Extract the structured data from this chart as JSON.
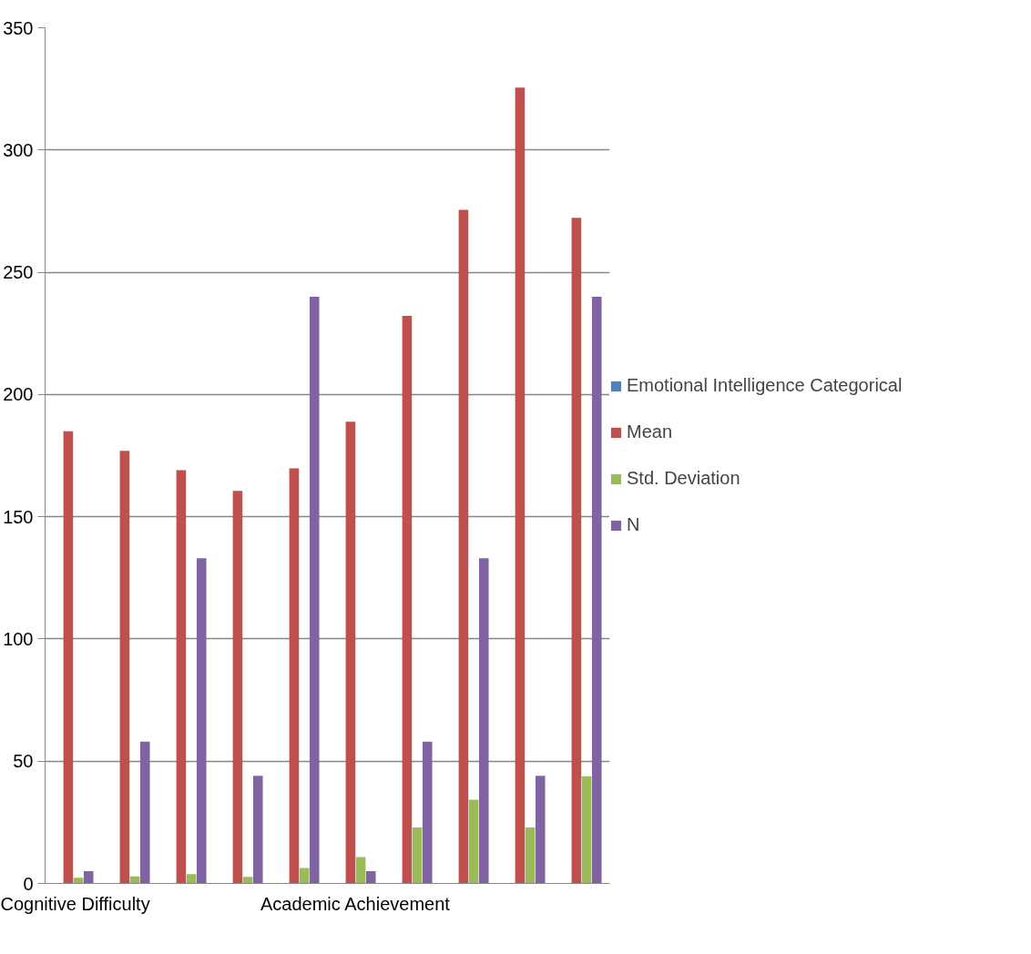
{
  "chart_data": {
    "type": "bar",
    "categories": [
      "Cognitive Difficulty",
      null,
      null,
      null,
      null,
      "Academic Achievement",
      null,
      null,
      null,
      null
    ],
    "series": [
      {
        "name": "Emotional Intelligence Categorical",
        "color": "#4f81bd",
        "values": [
          0,
          0,
          0,
          0,
          0,
          0,
          0,
          0,
          0,
          0
        ]
      },
      {
        "name": "Mean",
        "color": "#c0504d",
        "values": [
          185,
          177,
          169,
          160.6,
          169.8,
          188.9,
          232.2,
          275.5,
          325.5,
          272.3
        ]
      },
      {
        "name": "Std. Deviation",
        "color": "#9bbb59",
        "values": [
          2.3,
          2.9,
          3.8,
          2.7,
          6.3,
          10.8,
          22.9,
          34.3,
          22.9,
          43.8
        ]
      },
      {
        "name": "N",
        "color": "#8064a2",
        "values": [
          5,
          58,
          133,
          44,
          240,
          5,
          58,
          133,
          44,
          240
        ]
      }
    ],
    "ylim": [
      0,
      350
    ],
    "yticks": [
      0,
      50,
      100,
      150,
      200,
      250,
      300,
      350
    ],
    "grid": "y",
    "legend": "right"
  }
}
